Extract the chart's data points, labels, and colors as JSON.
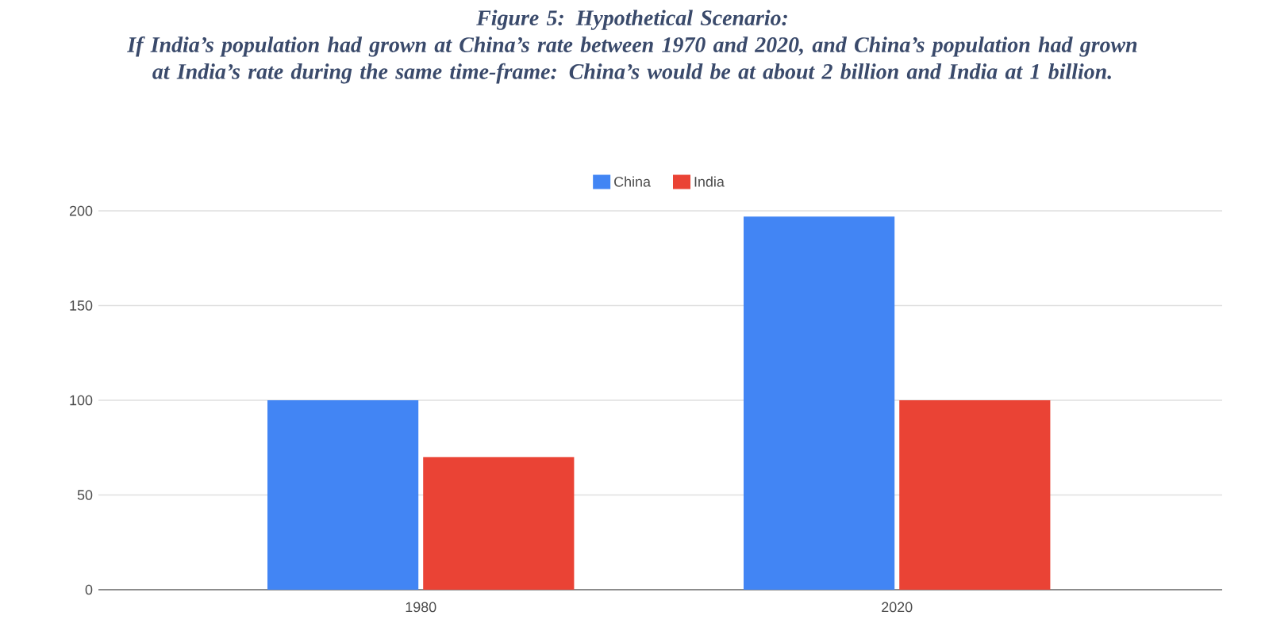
{
  "chart_data": {
    "type": "bar",
    "title": "Figure 5: Hypothetical Scenario:",
    "subtitle": "If India’s population had grown at China’s rate between 1970 and 2020, and China’s population had grown at India’s rate during the same time-frame: China’s would be at about 2 billion and India at 1 billion.",
    "categories": [
      "1980",
      "2020"
    ],
    "series": [
      {
        "name": "China",
        "color": "#4285f4",
        "values": [
          100,
          197
        ]
      },
      {
        "name": "India",
        "color": "#ea4335",
        "values": [
          70,
          100
        ]
      }
    ],
    "ylim": [
      0,
      200
    ],
    "yticks": [
      0,
      50,
      100,
      150,
      200
    ],
    "grid": "y",
    "legend": "top"
  }
}
